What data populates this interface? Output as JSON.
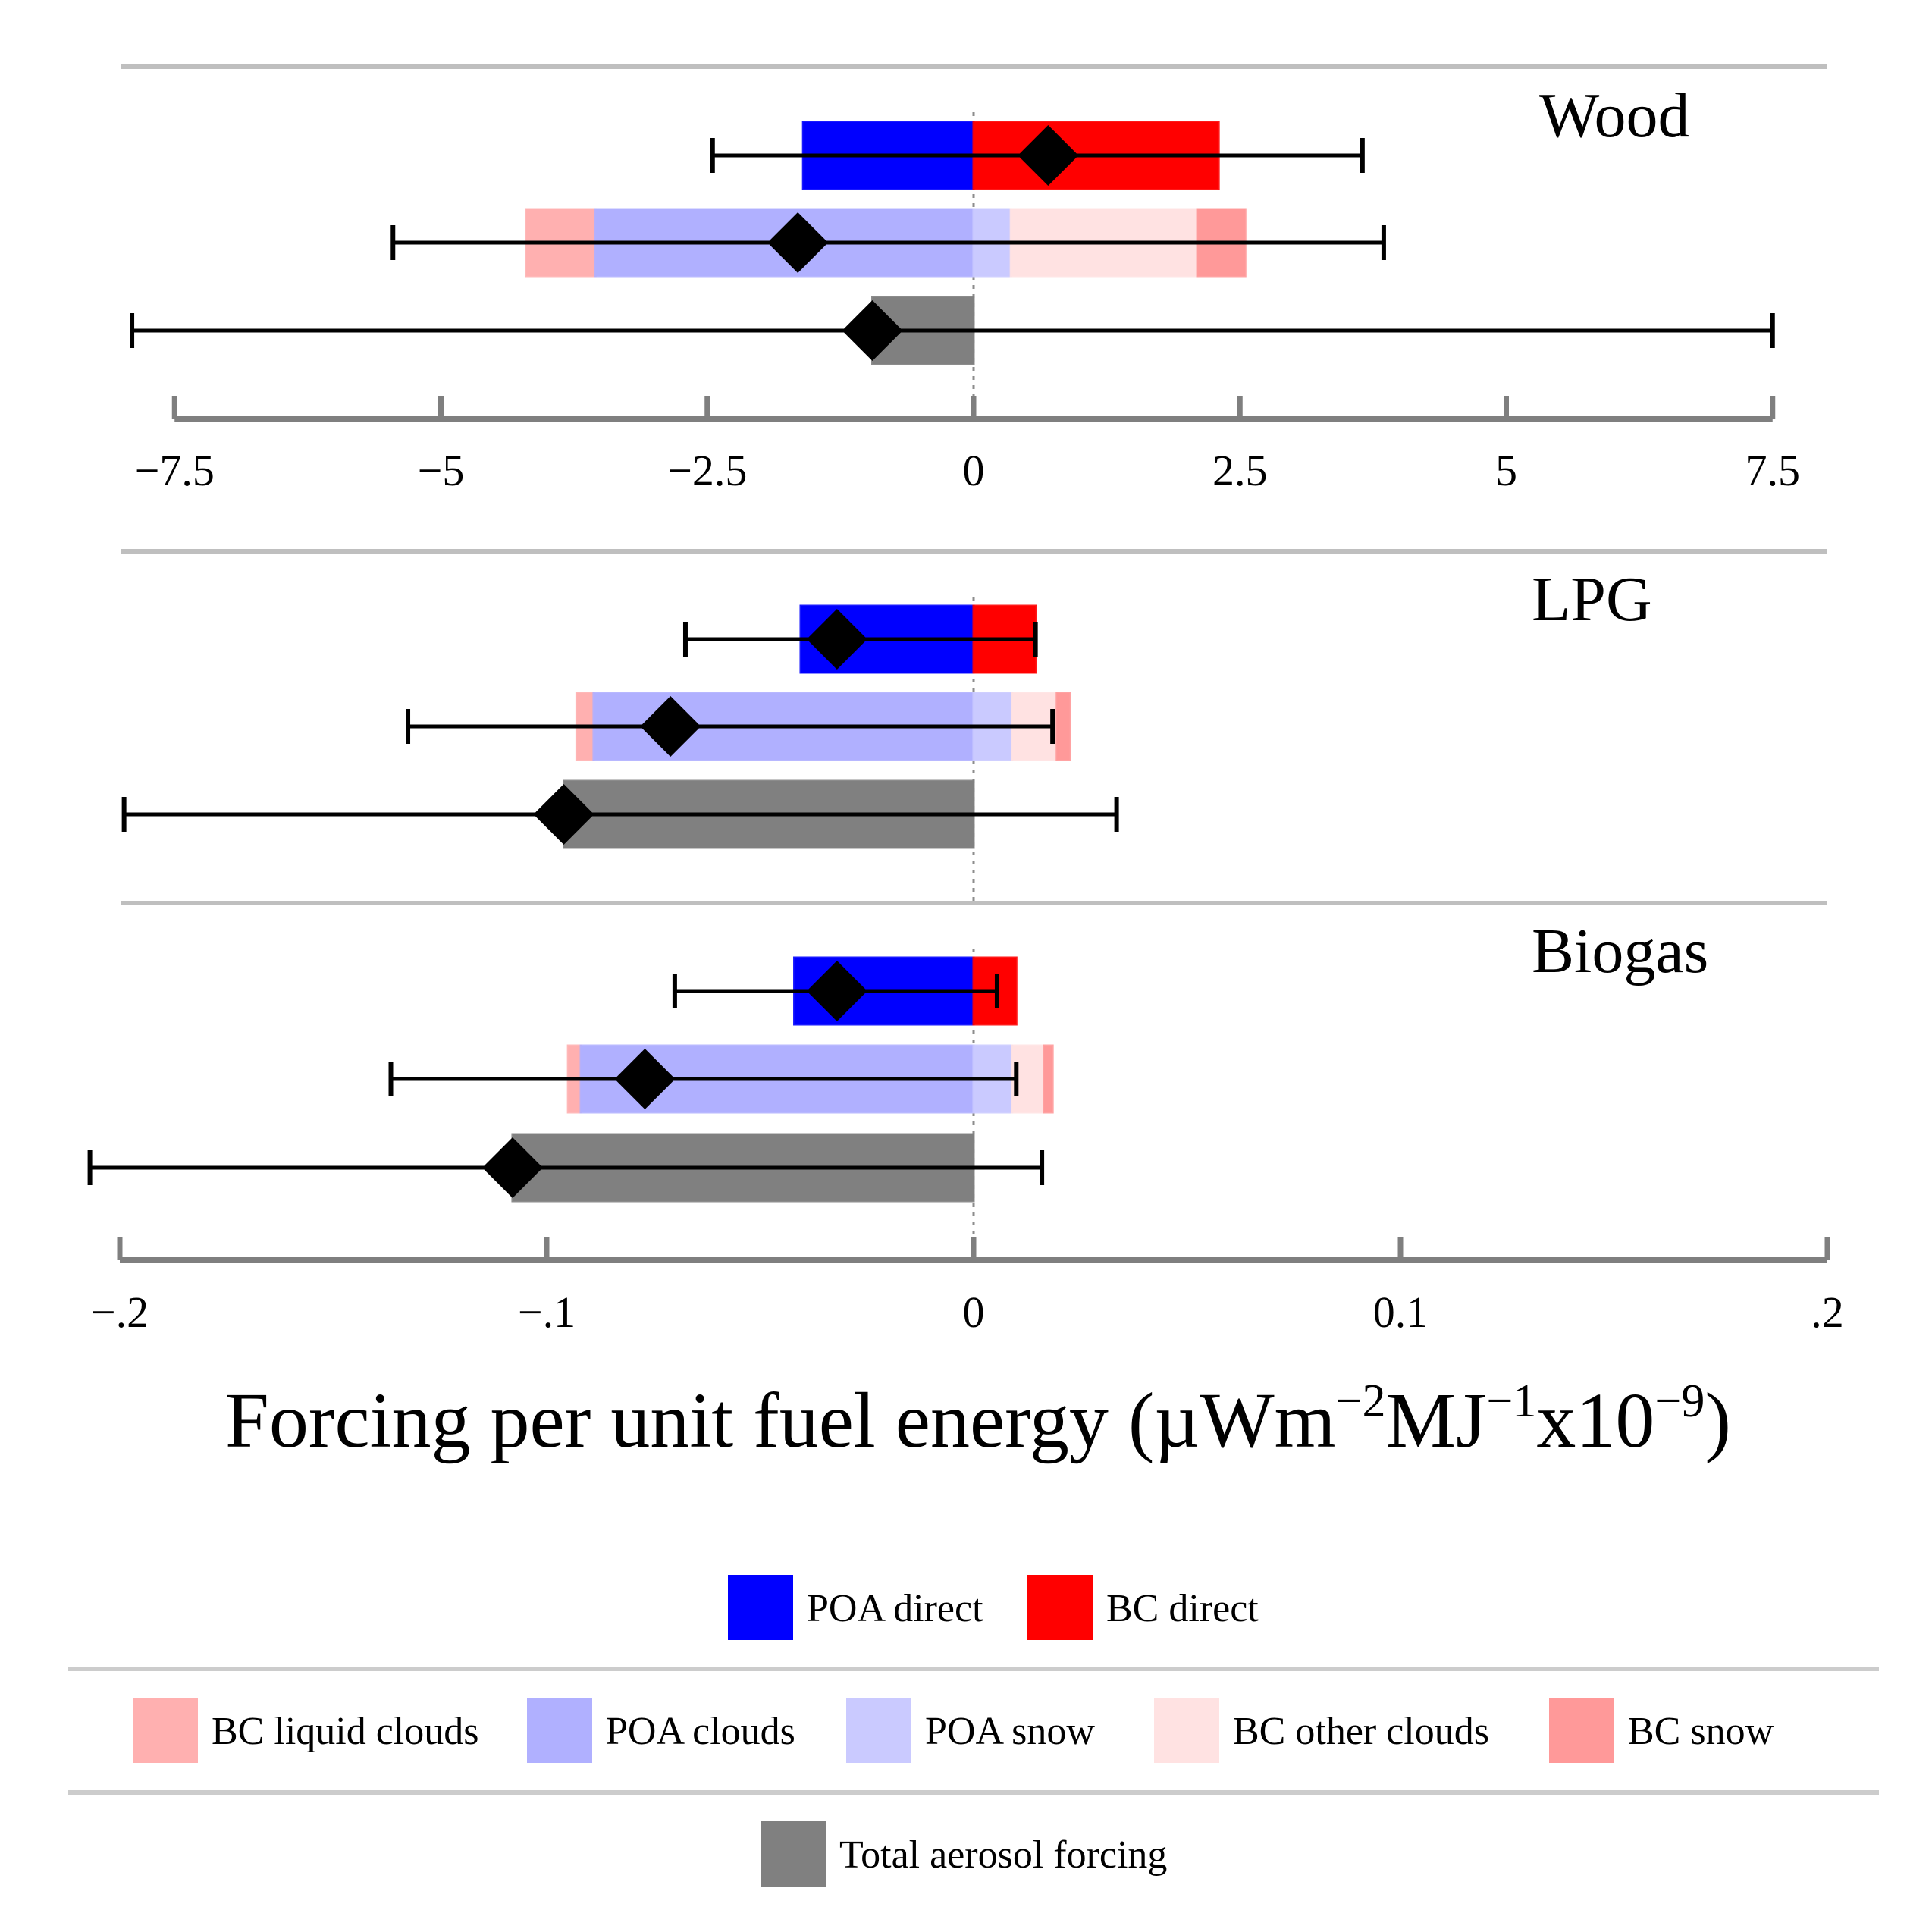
{
  "chart_data": {
    "type": "bar",
    "description_label": "Horizontal stacked bars with point estimates (diamonds) and uncertainty ranges (error bars)",
    "xlabel": {
      "main": "Forcing per unit fuel energy (",
      "unit_mu": "µWm",
      "exp1": "−2",
      "unit_mj": "MJ",
      "exp2": "−1",
      "unit_x10": "x10",
      "exp3": "−9",
      "close": ")"
    },
    "panels": [
      {
        "name": "Wood",
        "xlim": [
          -8,
          8
        ],
        "ticks": [
          -7.5,
          -5,
          -2.5,
          0,
          2.5,
          5,
          7.5
        ],
        "tick_labels": [
          "−7.5",
          "−5",
          "−2.5",
          "0",
          "2.5",
          "5",
          "7.5"
        ],
        "rows": [
          {
            "row": "direct",
            "segments": [
              {
                "component": "POA direct",
                "from": -1.6,
                "to": 0
              },
              {
                "component": "BC direct",
                "from": 0,
                "to": 2.3
              }
            ],
            "estimate": 0.7,
            "range": [
              -2.45,
              3.65
            ]
          },
          {
            "row": "indirect",
            "segments": [
              {
                "component": "BC liquid clouds",
                "from": -4.2,
                "to": -3.55
              },
              {
                "component": "POA clouds",
                "from": -3.55,
                "to": 0
              },
              {
                "component": "POA snow",
                "from": 0,
                "to": 0.35
              },
              {
                "component": "BC other clouds",
                "from": 0.35,
                "to": 2.1
              },
              {
                "component": "BC snow",
                "from": 2.1,
                "to": 2.55
              }
            ],
            "estimate": -1.65,
            "range": [
              -5.45,
              3.85
            ]
          },
          {
            "row": "total",
            "segments": [
              {
                "component": "Total aerosol forcing",
                "from": -0.95,
                "to": 0
              }
            ],
            "estimate": -0.95,
            "range": [
              -7.9,
              7.5
            ]
          }
        ]
      },
      {
        "name": "LPG",
        "xlim": [
          -0.2,
          0.2
        ],
        "ticks": [
          -0.2,
          -0.1,
          0,
          0.1,
          0.2
        ],
        "tick_labels": [
          "−.2",
          "−.1",
          "0",
          "0.1",
          ".2"
        ],
        "rows": [
          {
            "row": "direct",
            "segments": [
              {
                "component": "POA direct",
                "from": -0.0405,
                "to": 0
              },
              {
                "component": "BC direct",
                "from": 0,
                "to": 0.0145
              }
            ],
            "estimate": -0.032,
            "range": [
              -0.0675,
              0.0145
            ]
          },
          {
            "row": "indirect",
            "segments": [
              {
                "component": "BC liquid clouds",
                "from": -0.093,
                "to": -0.089
              },
              {
                "component": "POA clouds",
                "from": -0.089,
                "to": 0
              },
              {
                "component": "POA snow",
                "from": 0,
                "to": 0.009
              },
              {
                "component": "BC other clouds",
                "from": 0.009,
                "to": 0.0195
              },
              {
                "component": "BC snow",
                "from": 0.0195,
                "to": 0.0225
              }
            ],
            "estimate": -0.071,
            "range": [
              -0.1325,
              0.0185
            ]
          },
          {
            "row": "total",
            "segments": [
              {
                "component": "Total aerosol forcing",
                "from": -0.096,
                "to": 0
              }
            ],
            "estimate": -0.096,
            "range": [
              -0.199,
              0.0335
            ]
          }
        ]
      },
      {
        "name": "Biogas",
        "xlim": [
          -0.2,
          0.2
        ],
        "ticks": [
          -0.2,
          -0.1,
          0,
          0.1,
          0.2
        ],
        "tick_labels": [
          "−.2",
          "−.1",
          "0",
          "0.1",
          ".2"
        ],
        "rows": [
          {
            "row": "direct",
            "segments": [
              {
                "component": "POA direct",
                "from": -0.042,
                "to": 0
              },
              {
                "component": "BC direct",
                "from": 0,
                "to": 0.01
              }
            ],
            "estimate": -0.032,
            "range": [
              -0.07,
              0.0055
            ]
          },
          {
            "row": "indirect",
            "segments": [
              {
                "component": "BC liquid clouds",
                "from": -0.095,
                "to": -0.092
              },
              {
                "component": "POA clouds",
                "from": -0.092,
                "to": 0
              },
              {
                "component": "POA snow",
                "from": 0,
                "to": 0.009
              },
              {
                "component": "BC other clouds",
                "from": 0.009,
                "to": 0.0165
              },
              {
                "component": "BC snow",
                "from": 0.0165,
                "to": 0.0185
              }
            ],
            "estimate": -0.077,
            "range": [
              -0.1365,
              0.01
            ]
          },
          {
            "row": "total",
            "segments": [
              {
                "component": "Total aerosol forcing",
                "from": -0.108,
                "to": 0
              }
            ],
            "estimate": -0.108,
            "range": [
              -0.207,
              0.016
            ]
          }
        ]
      }
    ],
    "legend": {
      "position": "bottom",
      "rows": [
        [
          "POA direct",
          "BC direct"
        ],
        [
          "BC liquid clouds",
          "POA clouds",
          "POA snow",
          "BC other clouds",
          "BC snow"
        ],
        [
          "Total aerosol forcing"
        ]
      ]
    }
  },
  "colors": {
    "POA direct": "#0000ff",
    "BC direct": "#ff0000",
    "BC liquid clouds": "#ffb0b0",
    "POA clouds": "#b0b0ff",
    "POA snow": "#cacaff",
    "BC other clouds": "#ffe2e2",
    "BC snow": "#ff9999",
    "Total aerosol forcing": "#808080",
    "grid_line": "#bfbfbf",
    "axis": "#7f7f7f",
    "marker": "#000000"
  }
}
